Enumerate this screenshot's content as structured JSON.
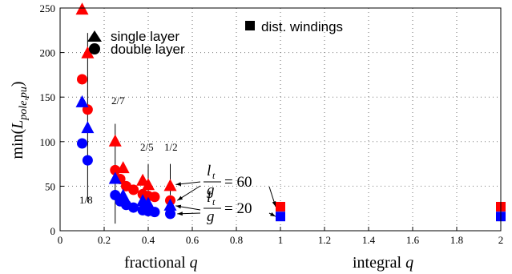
{
  "chart_data": {
    "type": "scatter",
    "ylabel_base": "min(",
    "ylabel_sub": "L",
    "ylabel_subscript": "pole,pu",
    "ylabel_close": ")",
    "xlabel_fractional": "fractional",
    "xlabel_integral": "integral",
    "xlabel_var": "q",
    "xlim": [
      0,
      2
    ],
    "ylim": [
      0,
      250
    ],
    "x_ticks": [
      0,
      0.2,
      0.4,
      0.6,
      0.8,
      1,
      1.2,
      1.4,
      1.6,
      1.8,
      2
    ],
    "x_tick_labels": [
      "0",
      "0.2",
      "0.4",
      "0.6",
      "0.8",
      "1",
      "1.2",
      "1.4",
      "1.6",
      "1.8",
      "2"
    ],
    "y_ticks": [
      0,
      50,
      100,
      150,
      200,
      250
    ],
    "y_tick_labels": [
      "0",
      "50",
      "100",
      "150",
      "200",
      "250"
    ],
    "grid": "dotted",
    "legend": [
      {
        "marker": "triangle",
        "label": "single layer"
      },
      {
        "marker": "circle",
        "label": "double layer"
      },
      {
        "marker": "square",
        "label": "dist. windings"
      }
    ],
    "colors": {
      "lt_g_60": "#ff0000",
      "lt_g_20": "#0000ff"
    },
    "series": [
      {
        "group": "lt_g_60",
        "marker": "triangle",
        "x": [
          0.1,
          0.125,
          0.25,
          0.286,
          0.375,
          0.4,
          0.5
        ],
        "y": [
          248,
          199,
          100,
          70,
          56,
          51,
          50
        ]
      },
      {
        "group": "lt_g_60",
        "marker": "circle",
        "x": [
          0.1,
          0.125,
          0.25,
          0.273,
          0.3,
          0.333,
          0.375,
          0.4,
          0.429,
          0.5
        ],
        "y": [
          170,
          136,
          68,
          58,
          50,
          46,
          41,
          39,
          38,
          34
        ]
      },
      {
        "group": "lt_g_60",
        "marker": "square",
        "x": [
          1,
          2
        ],
        "y": [
          27,
          27
        ]
      },
      {
        "group": "lt_g_20",
        "marker": "triangle",
        "x": [
          0.1,
          0.125,
          0.25,
          0.286,
          0.375,
          0.4,
          0.5
        ],
        "y": [
          144,
          115,
          58,
          39,
          33,
          30,
          28
        ]
      },
      {
        "group": "lt_g_20",
        "marker": "circle",
        "x": [
          0.1,
          0.125,
          0.25,
          0.273,
          0.3,
          0.333,
          0.375,
          0.4,
          0.429,
          0.5
        ],
        "y": [
          98,
          79,
          40,
          33,
          29,
          26,
          23,
          22,
          21,
          19
        ]
      },
      {
        "group": "lt_g_20",
        "marker": "square",
        "x": [
          1,
          2
        ],
        "y": [
          16,
          16
        ]
      }
    ],
    "annotations": [
      {
        "text": "2/7",
        "x": 0.25
      },
      {
        "text": "2/5",
        "x": 0.4
      },
      {
        "text": "1/2",
        "x": 0.5
      },
      {
        "text": "1/8",
        "x": 0.125
      }
    ],
    "curve_labels": [
      {
        "num": "l",
        "num_sub": "t",
        "den": "g",
        "value": "= 60"
      },
      {
        "num": "l",
        "num_sub": "t",
        "den": "g",
        "value": "= 20"
      }
    ]
  }
}
